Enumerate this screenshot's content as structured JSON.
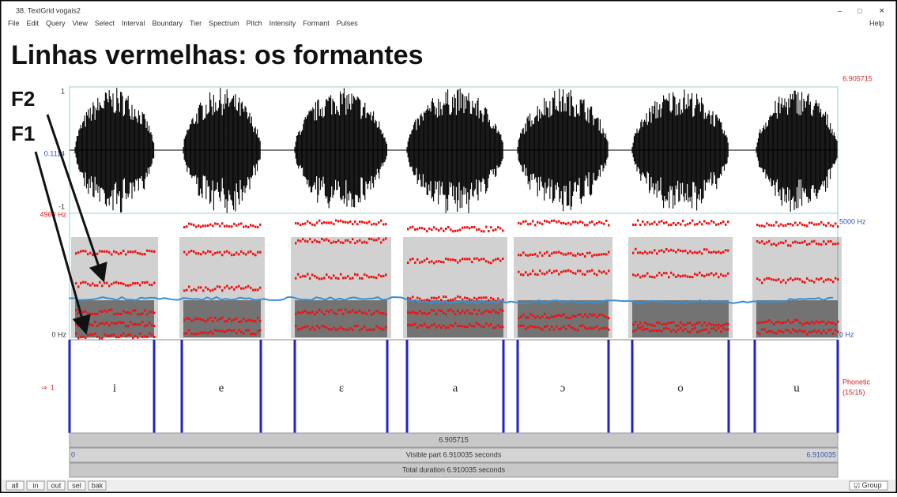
{
  "window": {
    "title": "38. TextGrid vogais2",
    "menu": [
      "File",
      "Edit",
      "Query",
      "View",
      "Select",
      "Interval",
      "Boundary",
      "Tier",
      "Spectrum",
      "Pitch",
      "Intensity",
      "Formant",
      "Pulses"
    ],
    "help": "Help"
  },
  "heading": "Linhas vermelhas: os formantes",
  "annotations": {
    "f2": "F2",
    "f1": "F1"
  },
  "waveform": {
    "top": "1",
    "middle": "0.1114",
    "bottom": "-1",
    "cursor_time": "6.905715"
  },
  "spectrogram": {
    "left_top": "4960 Hz",
    "left_bottom": "0 Hz",
    "right_top": "5000 Hz",
    "right_bottom": "0 Hz"
  },
  "tier": {
    "number": "1",
    "name": "Phonetic",
    "count": "(15/15)",
    "segments": [
      "i",
      "e",
      "ɛ",
      "a",
      "ɔ",
      "o",
      "u"
    ]
  },
  "footer": {
    "cursor": "6.905715",
    "start": "0",
    "visible": "Visible part 6.910035 seconds",
    "end": "6.910035",
    "total": "Total duration 6.910035 seconds"
  },
  "toolbar": {
    "buttons": [
      "all",
      "in",
      "out",
      "sel",
      "bak"
    ],
    "group": "Group"
  }
}
